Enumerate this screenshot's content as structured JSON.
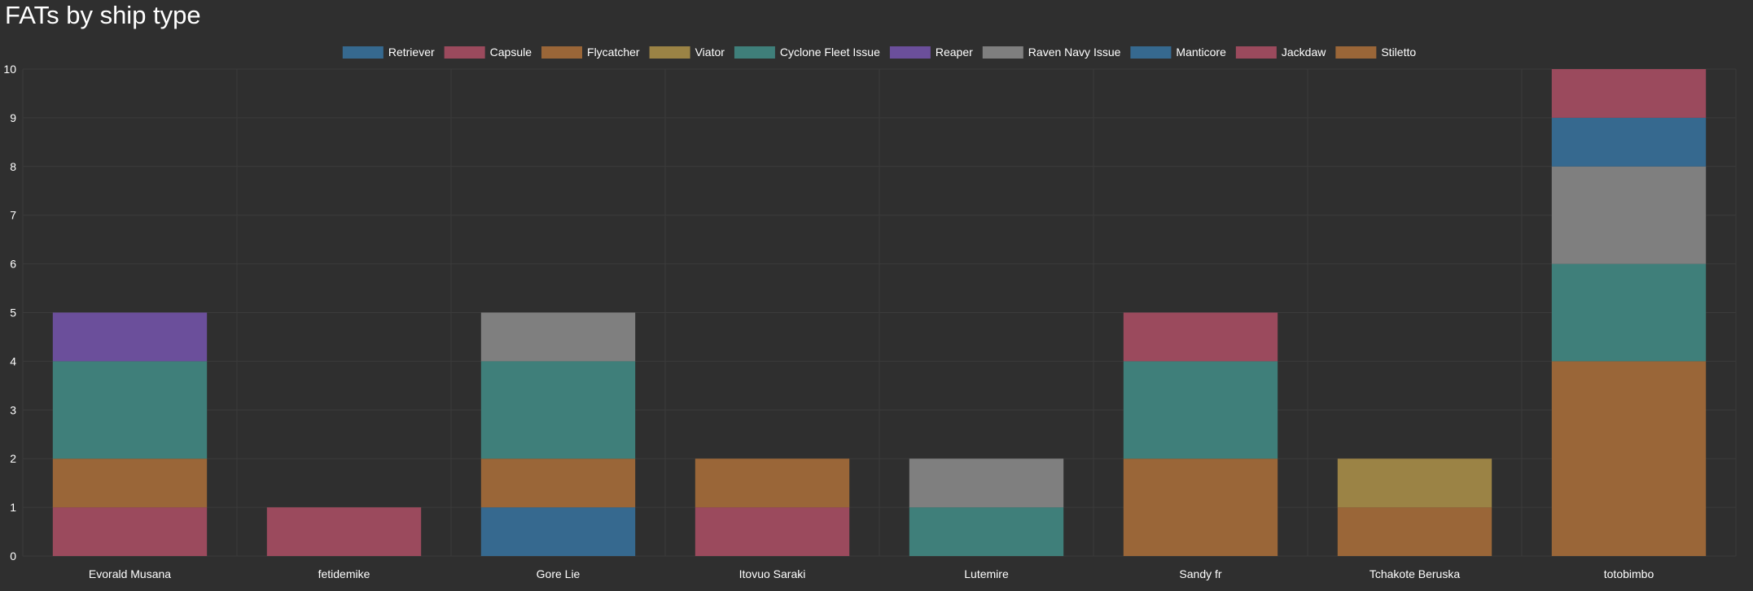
{
  "chart_data": {
    "type": "bar",
    "stacked": true,
    "title": "FATs by ship type",
    "categories": [
      "Evorald Musana",
      "fetidemike",
      "Gore Lie",
      "Itovuo Saraki",
      "Lutemire",
      "Sandy fr",
      "Tchakote Beruska",
      "totobimbo"
    ],
    "ylim": [
      0,
      10
    ],
    "yticks": [
      0,
      1,
      2,
      3,
      4,
      5,
      6,
      7,
      8,
      9,
      10
    ],
    "grid": true,
    "legend_position": "top",
    "series": [
      {
        "name": "Retriever",
        "color": "#36698f",
        "values": [
          0,
          0,
          1,
          0,
          0,
          0,
          0,
          0
        ]
      },
      {
        "name": "Capsule",
        "color": "#9b4a5d",
        "values": [
          1,
          1,
          0,
          1,
          0,
          0,
          0,
          0
        ]
      },
      {
        "name": "Flycatcher",
        "color": "#9a6638",
        "values": [
          1,
          0,
          1,
          1,
          0,
          2,
          1,
          4
        ]
      },
      {
        "name": "Viator",
        "color": "#9b8345",
        "values": [
          0,
          0,
          0,
          0,
          0,
          0,
          1,
          0
        ]
      },
      {
        "name": "Cyclone Fleet Issue",
        "color": "#3f7f7a",
        "values": [
          2,
          0,
          2,
          0,
          1,
          2,
          0,
          2
        ]
      },
      {
        "name": "Reaper",
        "color": "#6b4f9b",
        "values": [
          1,
          0,
          0,
          0,
          0,
          0,
          0,
          0
        ]
      },
      {
        "name": "Raven Navy Issue",
        "color": "#7f7f7f",
        "values": [
          0,
          0,
          1,
          0,
          1,
          0,
          0,
          2
        ]
      },
      {
        "name": "Manticore",
        "color": "#36698f",
        "values": [
          0,
          0,
          0,
          0,
          0,
          0,
          0,
          1
        ]
      },
      {
        "name": "Jackdaw",
        "color": "#9b4a5d",
        "values": [
          0,
          0,
          0,
          0,
          0,
          1,
          0,
          1
        ]
      },
      {
        "name": "Stiletto",
        "color": "#9a6638",
        "values": [
          0,
          0,
          0,
          0,
          0,
          0,
          0,
          0
        ]
      }
    ]
  }
}
